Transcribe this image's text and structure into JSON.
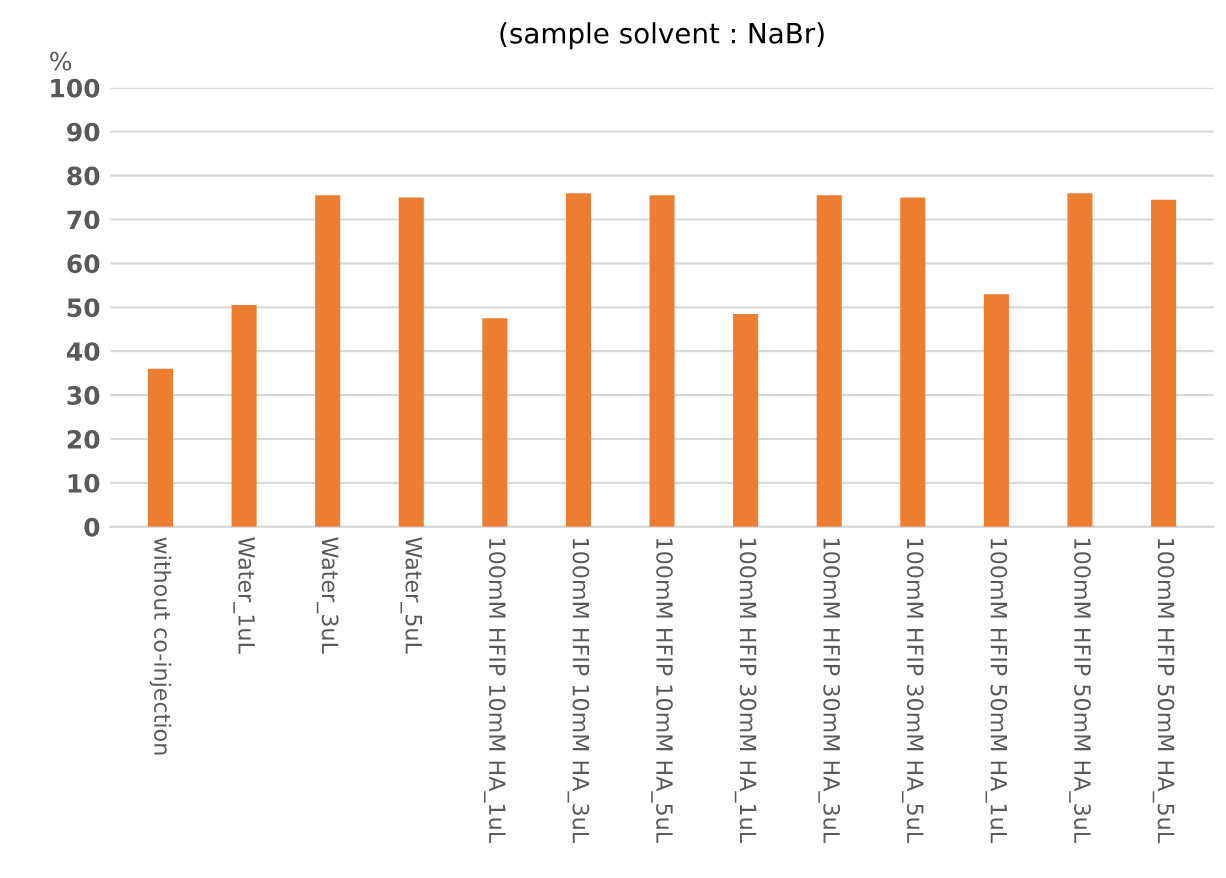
{
  "chart_data": {
    "type": "bar",
    "title": "(sample solvent : NaBr)",
    "ylabel": "%",
    "categories": [
      "without co-injection",
      "Water_1uL",
      "Water_3uL",
      "Water_5uL",
      "100mM HFIP 10mM HA_1uL",
      "100mM HFIP 10mM HA_3uL",
      "100mM HFIP 10mM HA_5uL",
      "100mM HFIP 30mM HA_1uL",
      "100mM HFIP 30mM HA_3uL",
      "100mM HFIP 30mM HA_5uL",
      "100mM HFIP 50mM HA_1uL",
      "100mM HFIP 50mM HA_3uL",
      "100mM HFIP 50mM HA_5uL"
    ],
    "values": [
      36,
      50.5,
      75.5,
      75,
      47.5,
      76,
      75.5,
      48.5,
      75.5,
      75,
      53,
      76,
      74.5
    ],
    "color": "#ed7d31",
    "ylim": [
      0,
      100
    ],
    "yticks": [
      0,
      10,
      20,
      30,
      40,
      50,
      60,
      70,
      80,
      90,
      100
    ],
    "grid": "y",
    "legend": false
  }
}
